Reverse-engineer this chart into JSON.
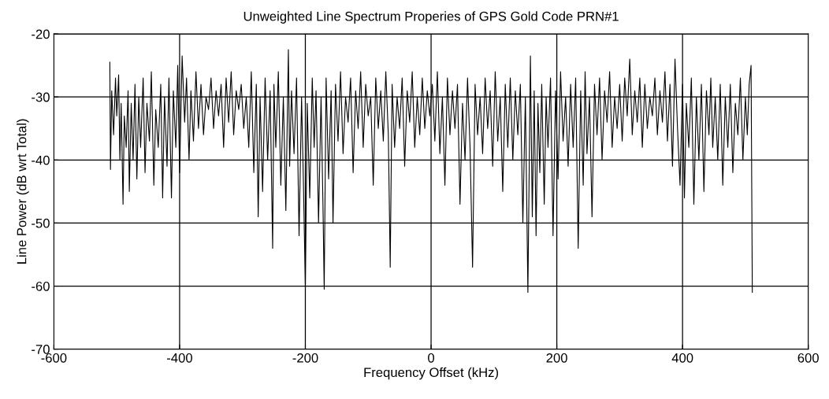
{
  "chart_data": {
    "type": "line",
    "title": "Unweighted Line Spectrum Properies of GPS Gold Code PRN#1",
    "xlabel": "Frequency Offset (kHz)",
    "ylabel": "Line Power (dB wrt Total)",
    "xlim": [
      -600,
      600
    ],
    "ylim": [
      -70,
      -20
    ],
    "xticks": [
      -600,
      -400,
      -200,
      0,
      200,
      400,
      600
    ],
    "yticks": [
      -70,
      -60,
      -50,
      -40,
      -30,
      -20
    ],
    "grid": true,
    "legend": false,
    "marker": "none",
    "line_style": "solid",
    "series": [
      {
        "color": "#000000",
        "x": [
          -511,
          -510,
          -508,
          -505,
          -502,
          -500,
          -497,
          -495,
          -493,
          -490,
          -488,
          -485,
          -482,
          -480,
          -477,
          -474,
          -471,
          -468,
          -465,
          -462,
          -458,
          -455,
          -452,
          -448,
          -445,
          -441,
          -438,
          -434,
          -430,
          -427,
          -424,
          -420,
          -417,
          -413,
          -410,
          -406,
          -403,
          -400,
          -396,
          -392,
          -389,
          -385,
          -382,
          -378,
          -374,
          -370,
          -366,
          -362,
          -358,
          -354,
          -350,
          -346,
          -342,
          -338,
          -334,
          -330,
          -326,
          -322,
          -318,
          -314,
          -310,
          -306,
          -302,
          -298,
          -294,
          -290,
          -286,
          -282,
          -278,
          -275,
          -272,
          -268,
          -264,
          -260,
          -256,
          -252,
          -250,
          -247,
          -243,
          -239,
          -235,
          -231,
          -227,
          -225,
          -222,
          -218,
          -214,
          -210,
          -206,
          -203,
          -200,
          -197,
          -193,
          -189,
          -186,
          -183,
          -179,
          -175,
          -172,
          -170,
          -167,
          -163,
          -159,
          -156,
          -152,
          -148,
          -144,
          -140,
          -136,
          -132,
          -128,
          -124,
          -120,
          -116,
          -112,
          -108,
          -104,
          -100,
          -96,
          -92,
          -88,
          -84,
          -80,
          -76,
          -72,
          -68,
          -65,
          -62,
          -58,
          -54,
          -50,
          -46,
          -42,
          -38,
          -34,
          -30,
          -26,
          -22,
          -18,
          -14,
          -10,
          -6,
          -2,
          2,
          6,
          10,
          14,
          18,
          22,
          26,
          30,
          34,
          38,
          42,
          46,
          50,
          54,
          58,
          62,
          66,
          70,
          74,
          78,
          82,
          86,
          90,
          94,
          98,
          102,
          106,
          110,
          114,
          118,
          122,
          126,
          130,
          134,
          138,
          142,
          146,
          150,
          154,
          158,
          161,
          164,
          167,
          170,
          173,
          176,
          180,
          183,
          186,
          190,
          194,
          198,
          202,
          206,
          210,
          214,
          218,
          222,
          226,
          230,
          234,
          238,
          242,
          245,
          248,
          252,
          256,
          260,
          264,
          268,
          272,
          276,
          280,
          284,
          288,
          292,
          296,
          300,
          304,
          308,
          312,
          316,
          320,
          324,
          328,
          332,
          336,
          340,
          344,
          348,
          352,
          356,
          360,
          364,
          368,
          372,
          376,
          380,
          384,
          388,
          392,
          396,
          400,
          403,
          406,
          410,
          414,
          418,
          422,
          426,
          430,
          434,
          438,
          442,
          445,
          448,
          452,
          456,
          460,
          464,
          468,
          472,
          476,
          480,
          484,
          488,
          492,
          496,
          500,
          503,
          506,
          509,
          511
        ],
        "values": [
          -24.5,
          -41.5,
          -29,
          -36,
          -27,
          -33,
          -26.5,
          -40,
          -31,
          -47,
          -33,
          -38,
          -29,
          -45,
          -31,
          -40,
          -28,
          -43,
          -30,
          -38,
          -27,
          -42,
          -31,
          -37,
          -26,
          -44,
          -32,
          -38,
          -28,
          -46,
          -30,
          -41,
          -27,
          -46,
          -29,
          -38,
          -25,
          -42,
          -23.5,
          -34,
          -27,
          -40,
          -29,
          -37,
          -26,
          -35,
          -28,
          -36,
          -30,
          -32,
          -27,
          -35,
          -29,
          -33,
          -28,
          -38,
          -27,
          -34,
          -26,
          -36,
          -29,
          -32,
          -28,
          -35,
          -30,
          -38,
          -26,
          -42,
          -28,
          -49,
          -30,
          -45,
          -27,
          -40,
          -29,
          -54,
          -28,
          -38,
          -26,
          -44,
          -30,
          -48,
          -22.5,
          -41,
          -29,
          -39,
          -27,
          -52,
          -30,
          -44,
          -60,
          -31,
          -46,
          -27,
          -38,
          -29,
          -50,
          -30,
          -47,
          -60.5,
          -27,
          -43,
          -29,
          -50,
          -28,
          -37,
          -26,
          -39,
          -30,
          -34,
          -27,
          -42,
          -29,
          -35,
          -26,
          -38,
          -28,
          -33,
          -30,
          -44,
          -27,
          -35,
          -29,
          -37,
          -26,
          -36,
          -57,
          -28,
          -38,
          -30,
          -35,
          -27,
          -41,
          -29,
          -34,
          -26,
          -38,
          -30,
          -36,
          -27,
          -35,
          -29,
          -33,
          -28,
          -37,
          -26,
          -39,
          -30,
          -44,
          -27,
          -36,
          -29,
          -35,
          -28,
          -47,
          -31,
          -40,
          -27,
          -38,
          -57,
          -28,
          -36,
          -30,
          -39,
          -27,
          -35,
          -29,
          -41,
          -26,
          -37,
          -30,
          -45,
          -28,
          -38,
          -27,
          -40,
          -29,
          -36,
          -28,
          -50,
          -30,
          -61,
          -23.5,
          -49,
          -29,
          -52,
          -31,
          -42,
          -28,
          -47,
          -30,
          -38,
          -27,
          -52,
          -29,
          -43,
          -26,
          -37,
          -30,
          -41,
          -28,
          -38,
          -27,
          -54,
          -29,
          -44,
          -26,
          -39,
          -30,
          -49,
          -28,
          -36,
          -27,
          -40,
          -29,
          -34,
          -26,
          -38,
          -30,
          -35,
          -28,
          -37,
          -27,
          -33,
          -24,
          -36,
          -29,
          -34,
          -27,
          -38,
          -28,
          -35,
          -30,
          -33,
          -27,
          -36,
          -29,
          -34,
          -26,
          -37,
          -28,
          -41,
          -24,
          -35,
          -44,
          -28,
          -46,
          -31,
          -38,
          -27,
          -47,
          -30,
          -40,
          -28,
          -45,
          -29,
          -36,
          -27,
          -38,
          -30,
          -40,
          -28,
          -44,
          -30,
          -38,
          -28,
          -42,
          -31,
          -36,
          -27,
          -40,
          -30,
          -36,
          -28,
          -25,
          -61
        ]
      }
    ]
  }
}
